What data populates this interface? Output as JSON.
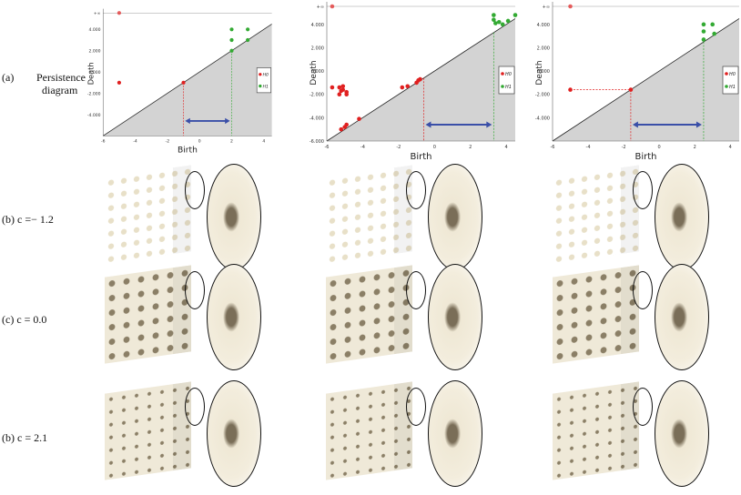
{
  "row_labels": {
    "a_prefix": "(a)",
    "a_text": "Persistence",
    "a_text2": "diagram",
    "b": "(b) c =− 1.2",
    "c": "(c) c = 0.0",
    "d": "(b) c = 2.1"
  },
  "axis": {
    "xlabel": "Birth",
    "ylabel": "Death",
    "inf_label": "+∞",
    "xticks": [
      -6,
      -4,
      -2,
      0,
      2,
      4
    ],
    "yticks": [
      "4.000",
      "2.000",
      "0.000",
      "-2.000",
      "-4.000",
      "-6.000"
    ],
    "xlim": [
      -6,
      4.5
    ],
    "ylim": [
      -6,
      5
    ]
  },
  "legend": {
    "h0": "H0",
    "h1": "H1"
  },
  "colors": {
    "h0": "#e02020",
    "h1": "#33aa33",
    "arrow": "#3a4fa8",
    "diag": "#d3d3d3"
  },
  "chart_data": [
    {
      "type": "scatter",
      "h0": [
        [
          -5,
          "inf"
        ],
        [
          -5,
          -1
        ],
        [
          -1,
          -1
        ]
      ],
      "h1": [
        [
          2,
          4
        ],
        [
          3,
          4
        ],
        [
          2,
          3
        ],
        [
          3,
          3
        ],
        [
          2,
          2
        ]
      ],
      "red_line": -1,
      "green_line": 2,
      "yticks": [
        "4.000",
        "2.000",
        "0.000",
        "-2.000",
        "-4.000"
      ]
    },
    {
      "type": "scatter",
      "h0": [
        [
          -5.7,
          "inf"
        ],
        [
          -5.7,
          -1.4
        ],
        [
          -5.3,
          -1.4
        ],
        [
          -5.1,
          -1.3
        ],
        [
          -5.2,
          -1.7
        ],
        [
          -4.9,
          -1.8
        ],
        [
          -5.3,
          -2
        ],
        [
          -4.9,
          -2
        ],
        [
          -5.1,
          -1.6
        ],
        [
          -5.2,
          -5
        ],
        [
          -5,
          -4.8
        ],
        [
          -4.9,
          -4.6
        ],
        [
          -4.2,
          -4.1
        ],
        [
          -1.8,
          -1.4
        ],
        [
          -1.5,
          -1.3
        ],
        [
          -1,
          -1
        ],
        [
          -0.9,
          -0.8
        ],
        [
          -0.8,
          -0.7
        ]
      ],
      "h1": [
        [
          3.3,
          4.8
        ],
        [
          3.3,
          4.4
        ],
        [
          3.4,
          4.1
        ],
        [
          3.6,
          4.2
        ],
        [
          3.8,
          4
        ],
        [
          4.1,
          4.3
        ],
        [
          4.5,
          4.8
        ]
      ],
      "red_line": -0.6,
      "green_line": 3.3,
      "yticks": [
        "4.000",
        "2.000",
        "0.000",
        "-2.000",
        "-4.000",
        "-6.000"
      ]
    },
    {
      "type": "scatter",
      "h0": [
        [
          -5,
          "inf"
        ],
        [
          -5,
          -1.6
        ],
        [
          -1.6,
          -1.6
        ]
      ],
      "h1": [
        [
          2.5,
          4
        ],
        [
          3,
          4
        ],
        [
          2.5,
          3.4
        ],
        [
          3.1,
          3.2
        ],
        [
          2.5,
          2.7
        ]
      ],
      "red_line": -1.6,
      "green_line": 2.5,
      "hline": [
        -5,
        -1.6,
        -1.6
      ],
      "yticks": [
        "4.000",
        "2.000",
        "0.000",
        "-2.000",
        "-4.000"
      ]
    }
  ]
}
